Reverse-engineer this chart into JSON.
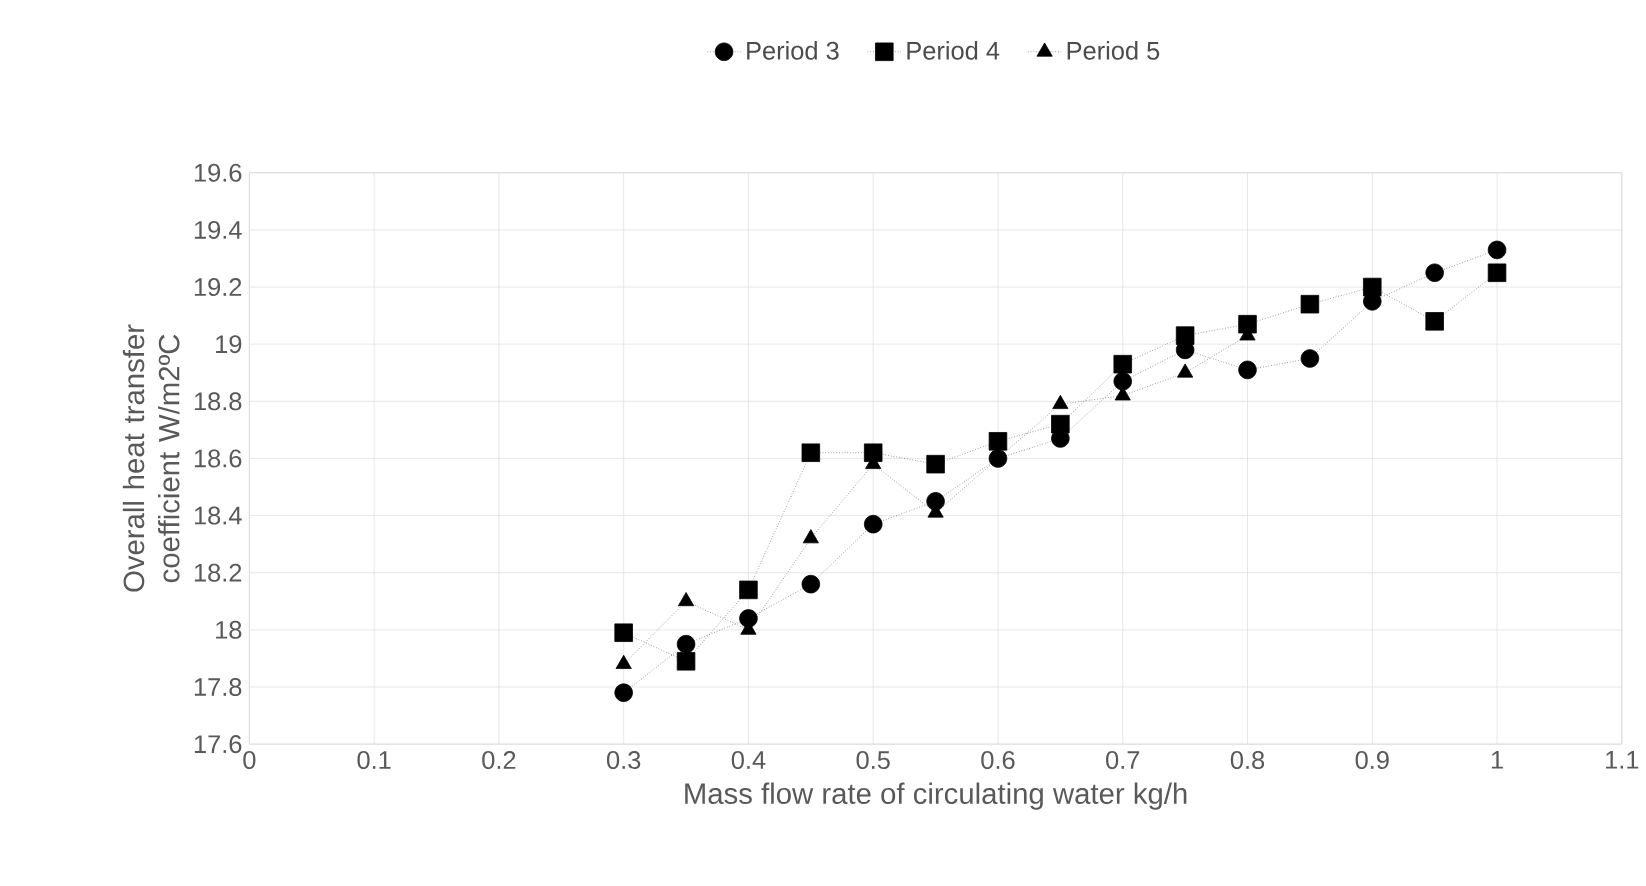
{
  "chart_data": {
    "type": "line",
    "xlabel": "Mass flow rate of circulating water kg/h",
    "ylabel": "Overall heat transfer coefficient W/m2ºC",
    "x": [
      0.3,
      0.35,
      0.4,
      0.45,
      0.5,
      0.55,
      0.6,
      0.65,
      0.7,
      0.75,
      0.8,
      0.85,
      0.9,
      0.95,
      1.0
    ],
    "series": [
      {
        "name": "Period 3",
        "color": "#000000",
        "marker": "circle",
        "values": [
          17.78,
          17.95,
          18.04,
          18.16,
          18.37,
          18.45,
          18.6,
          18.67,
          18.87,
          18.98,
          18.91,
          18.95,
          19.15,
          19.25,
          19.33
        ]
      },
      {
        "name": "Period 4",
        "color": "#000000",
        "marker": "square",
        "values": [
          17.99,
          17.89,
          18.14,
          18.62,
          18.62,
          18.58,
          18.66,
          18.72,
          18.93,
          19.03,
          19.07,
          19.14,
          19.2,
          19.08,
          19.25
        ]
      },
      {
        "name": "Period 5",
        "color": "#000000",
        "marker": "triangle",
        "x": [
          0.3,
          0.35,
          0.4,
          0.45,
          0.5,
          0.55,
          0.65,
          0.7,
          0.75,
          0.8
        ],
        "values": [
          17.88,
          18.1,
          18.0,
          18.32,
          18.58,
          18.41,
          18.79,
          18.82,
          18.9,
          19.03
        ]
      }
    ],
    "xlim": [
      0,
      1.1
    ],
    "xticks": [
      0,
      0.1,
      0.2,
      0.3,
      0.4,
      0.5,
      0.6,
      0.7,
      0.8,
      0.9,
      1,
      1.1
    ],
    "ylim": [
      17.6,
      19.6
    ],
    "yticks": [
      17.6,
      17.8,
      18,
      18.2,
      18.4,
      18.6,
      18.8,
      19,
      19.2,
      19.4,
      19.6
    ],
    "grid": true,
    "legend": "top",
    "line_style": "dotted"
  }
}
